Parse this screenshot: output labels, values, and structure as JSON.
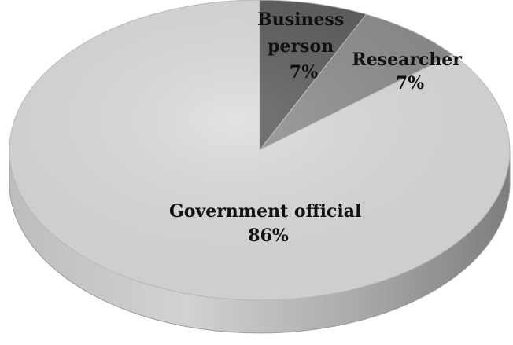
{
  "chart_data": {
    "type": "pie",
    "style": "3d",
    "legend": "none",
    "slices": [
      {
        "label_lines": [
          "Business",
          "person"
        ],
        "percent_label": "7%",
        "value": 7,
        "color": "#5a5a5a"
      },
      {
        "label_lines": [
          "Researcher"
        ],
        "percent_label": "7%",
        "value": 7,
        "color": "#8c8c8c"
      },
      {
        "label_lines": [
          "Government official"
        ],
        "percent_label": "86%",
        "value": 86,
        "color": "#dcdcdc"
      }
    ]
  }
}
